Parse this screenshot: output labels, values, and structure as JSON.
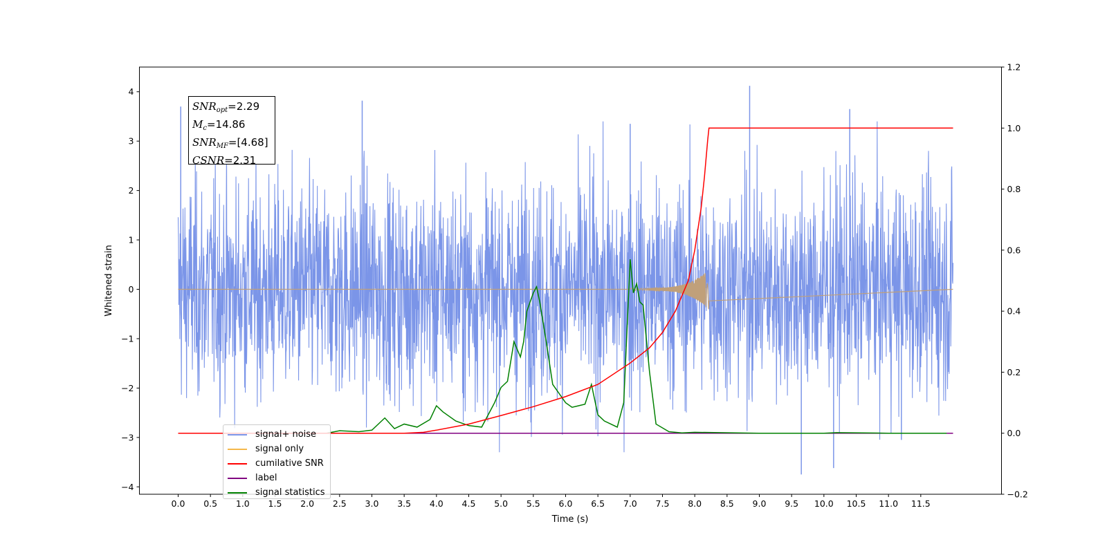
{
  "chart_data": {
    "type": "line",
    "xlabel": "Time (s)",
    "ylabel": "Whitened strain",
    "xlim": [
      -0.6,
      12.75
    ],
    "ylim": [
      -4.15,
      4.5
    ],
    "y2lim": [
      -0.2,
      1.2
    ],
    "x_ticks": [
      "0.0",
      "0.5",
      "1.0",
      "1.5",
      "2.0",
      "2.5",
      "3.0",
      "3.5",
      "4.0",
      "4.5",
      "5.0",
      "5.5",
      "6.0",
      "6.5",
      "7.0",
      "7.5",
      "8.0",
      "8.5",
      "9.0",
      "9.5",
      "10.0",
      "10.5",
      "11.0",
      "11.5"
    ],
    "y_ticks": [
      "4",
      "3",
      "2",
      "1",
      "0",
      "−1",
      "−2",
      "−3",
      "−4"
    ],
    "y2_ticks": [
      "1.2",
      "1.0",
      "0.8",
      "0.6",
      "0.4",
      "0.2",
      "0.0",
      "−0.2"
    ],
    "colors": {
      "signal_noise": "#7b95e8",
      "signal_only": "#f5b84a",
      "signal_visible": "#c0a07a",
      "cumulative_snr": "#ff0000",
      "label": "#800080",
      "signal_statistics": "#008000"
    },
    "series": [
      {
        "name": "signal+ noise",
        "axis": "left",
        "x_range": [
          0.0,
          12.0
        ],
        "typical_amplitude": 1.1,
        "peaks": [
          [
            0.04,
            3.7
          ],
          [
            2.85,
            3.82
          ],
          [
            7.0,
            3.35
          ],
          [
            8.85,
            4.12
          ],
          [
            10.4,
            3.65
          ],
          [
            9.65,
            -3.75
          ],
          [
            10.15,
            -3.62
          ],
          [
            11.2,
            -3.05
          ]
        ]
      },
      {
        "name": "signal only",
        "axis": "left",
        "x_range": [
          0.0,
          12.0
        ],
        "chirp_end": 8.22,
        "chirp_peak_amplitude": 0.38
      },
      {
        "name": "cumilative SNR",
        "axis": "right",
        "x": [
          0.0,
          3.5,
          3.8,
          4.0,
          4.5,
          5.0,
          5.5,
          6.0,
          6.5,
          7.0,
          7.3,
          7.5,
          7.7,
          7.9,
          8.0,
          8.1,
          8.15,
          8.2,
          8.22,
          12.0
        ],
        "values": [
          0.0,
          0.0,
          0.003,
          0.01,
          0.03,
          0.058,
          0.087,
          0.12,
          0.16,
          0.23,
          0.28,
          0.33,
          0.4,
          0.5,
          0.6,
          0.74,
          0.84,
          0.96,
          1.0,
          1.0
        ]
      },
      {
        "name": "label",
        "axis": "right",
        "x": [
          0.0,
          12.0
        ],
        "values": [
          0.0,
          0.0
        ]
      },
      {
        "name": "signal statistics",
        "axis": "right",
        "x": [
          0.0,
          2.3,
          2.5,
          2.8,
          3.0,
          3.2,
          3.35,
          3.5,
          3.7,
          3.9,
          4.0,
          4.1,
          4.3,
          4.5,
          4.7,
          4.8,
          4.9,
          5.0,
          5.1,
          5.2,
          5.3,
          5.35,
          5.4,
          5.5,
          5.55,
          5.6,
          5.7,
          5.8,
          5.9,
          6.0,
          6.1,
          6.2,
          6.3,
          6.4,
          6.5,
          6.6,
          6.7,
          6.8,
          6.9,
          7.0,
          7.05,
          7.1,
          7.15,
          7.2,
          7.3,
          7.4,
          7.6,
          7.8,
          8.0,
          9.0,
          10.0,
          10.2,
          11.0,
          11.9
        ],
        "values": [
          0.0,
          0.0,
          0.008,
          0.005,
          0.01,
          0.05,
          0.015,
          0.03,
          0.02,
          0.045,
          0.09,
          0.07,
          0.04,
          0.025,
          0.02,
          0.06,
          0.1,
          0.15,
          0.17,
          0.3,
          0.25,
          0.3,
          0.4,
          0.46,
          0.48,
          0.43,
          0.3,
          0.16,
          0.13,
          0.1,
          0.085,
          0.09,
          0.095,
          0.16,
          0.06,
          0.04,
          0.03,
          0.02,
          0.1,
          0.57,
          0.46,
          0.49,
          0.43,
          0.42,
          0.2,
          0.03,
          0.005,
          0.001,
          0.003,
          0.0,
          0.0,
          0.002,
          0.0,
          0.0
        ]
      }
    ]
  },
  "stats_box": {
    "snr_opt_sym": "SNR",
    "snr_opt_sub": "opt",
    "snr_opt_val": "=2.29",
    "mc_sym": "M",
    "mc_sub": "c",
    "mc_val": "=14.86",
    "snr_mf_sym": "SNR",
    "snr_mf_sub": "MF",
    "snr_mf_val": "=[4.68]",
    "csnr_sym": "CSNR",
    "csnr_val": "=2.31"
  },
  "legend": {
    "items": [
      {
        "label": "signal+ noise",
        "color": "#7b95e8"
      },
      {
        "label": "signal only",
        "color": "#f5b84a"
      },
      {
        "label": "cumilative SNR",
        "color": "#ff0000"
      },
      {
        "label": "label",
        "color": "#800080"
      },
      {
        "label": "signal statistics",
        "color": "#008000"
      }
    ]
  }
}
